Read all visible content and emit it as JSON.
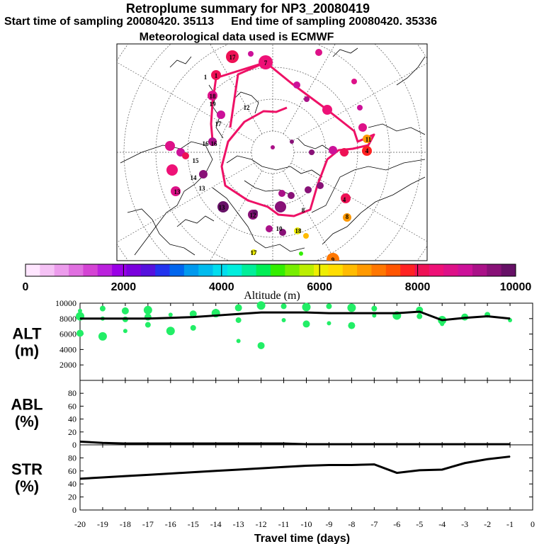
{
  "header": {
    "title": "Retroplume summary for NP3_20080419",
    "start_label": "Start time of sampling 20080420. 35113",
    "end_label": "End time of sampling 20080420. 35336",
    "met_label": "Meteorological data used is ECMWF"
  },
  "colors": {
    "track": "#ee1166",
    "green": "#22ee66",
    "line": "#000000"
  },
  "colorbar": {
    "ticks": [
      "0",
      "2000",
      "4000",
      "6000",
      "8000",
      "10000"
    ],
    "label": "Altitude (m)",
    "colors": [
      "#ffe6ff",
      "#f5c2f5",
      "#ec9cec",
      "#e070e0",
      "#d444d4",
      "#bb22dd",
      "#9a00e6",
      "#7a00dd",
      "#5511dd",
      "#2233ee",
      "#0066ee",
      "#0099ee",
      "#00bbee",
      "#00ddee",
      "#00eedd",
      "#00ee99",
      "#00ee55",
      "#33ee00",
      "#77ee00",
      "#bbee00",
      "#eeee00",
      "#ffdd00",
      "#ffbb00",
      "#ff9900",
      "#ff7700",
      "#ff5500",
      "#ff2222",
      "#ee1155",
      "#ee1177",
      "#dd1188",
      "#cc1199",
      "#aa1188",
      "#881177",
      "#661166"
    ]
  },
  "map": {
    "number_labels": [
      "17",
      "7",
      "1",
      "1",
      "18",
      "19",
      "12",
      "17",
      "16",
      "15",
      "14",
      "13",
      "13",
      "11",
      "4",
      "4",
      "8",
      "8",
      "12",
      "18",
      "17",
      "10",
      "9",
      "13",
      "16"
    ]
  },
  "chart_data": [
    {
      "type": "line",
      "panel": "ALT",
      "ylabel": "ALT\n(m)",
      "ylabel_lines": [
        "ALT",
        "(m)"
      ],
      "ylim": [
        0,
        10000
      ],
      "yticks": [
        "10000",
        "8000",
        "6000",
        "4000",
        "2000"
      ],
      "x": [
        -20,
        -19,
        -18,
        -17,
        -16,
        -15,
        -14,
        -13,
        -12,
        -11,
        -10,
        -9,
        -8,
        -7,
        -6,
        -5,
        -4,
        -3,
        -2,
        -1
      ],
      "values": [
        8000,
        8000,
        8000,
        8000,
        8100,
        8200,
        8400,
        8600,
        8800,
        8800,
        8800,
        8700,
        8700,
        8700,
        8700,
        8900,
        7800,
        8100,
        8300,
        8000
      ],
      "scatter_points": [
        {
          "x": -20,
          "y": 9000
        },
        {
          "x": -20,
          "y": 8300
        },
        {
          "x": -20,
          "y": 6100
        },
        {
          "x": -19,
          "y": 9300
        },
        {
          "x": -19,
          "y": 8000
        },
        {
          "x": -19,
          "y": 5700
        },
        {
          "x": -18,
          "y": 9000
        },
        {
          "x": -18,
          "y": 7900
        },
        {
          "x": -18,
          "y": 6400
        },
        {
          "x": -17,
          "y": 9100
        },
        {
          "x": -17,
          "y": 8200
        },
        {
          "x": -17,
          "y": 7200
        },
        {
          "x": -16,
          "y": 8500
        },
        {
          "x": -16,
          "y": 6400
        },
        {
          "x": -15,
          "y": 8600
        },
        {
          "x": -15,
          "y": 6800
        },
        {
          "x": -14,
          "y": 9000
        },
        {
          "x": -14,
          "y": 8700
        },
        {
          "x": -13,
          "y": 9400
        },
        {
          "x": -13,
          "y": 7800
        },
        {
          "x": -13,
          "y": 5100
        },
        {
          "x": -12,
          "y": 9700
        },
        {
          "x": -12,
          "y": 4500
        },
        {
          "x": -11,
          "y": 9600
        },
        {
          "x": -11,
          "y": 7800
        },
        {
          "x": -10,
          "y": 9500
        },
        {
          "x": -10,
          "y": 7300
        },
        {
          "x": -9,
          "y": 9600
        },
        {
          "x": -9,
          "y": 7400
        },
        {
          "x": -8,
          "y": 9400
        },
        {
          "x": -8,
          "y": 7100
        },
        {
          "x": -7,
          "y": 9300
        },
        {
          "x": -7,
          "y": 8400
        },
        {
          "x": -6,
          "y": 8400
        },
        {
          "x": -5,
          "y": 9100
        },
        {
          "x": -5,
          "y": 8300
        },
        {
          "x": -4,
          "y": 7300
        },
        {
          "x": -4,
          "y": 7800
        },
        {
          "x": -3,
          "y": 8200
        },
        {
          "x": -2,
          "y": 8500
        },
        {
          "x": -1,
          "y": 7800
        }
      ]
    },
    {
      "type": "line",
      "panel": "ABL",
      "ylabel_lines": [
        "ABL",
        "(%)"
      ],
      "ylim": [
        0,
        100
      ],
      "yticks": [
        "80",
        "60",
        "40",
        "20",
        "0"
      ],
      "x": [
        -20,
        -19,
        -18,
        -17,
        -16,
        -15,
        -14,
        -13,
        -12,
        -11,
        -10,
        -9,
        -8,
        -7,
        -6,
        -5,
        -4,
        -3,
        -2,
        -1
      ],
      "values": [
        5,
        3,
        2,
        2,
        2,
        2,
        2,
        2,
        2,
        2,
        1,
        1,
        1,
        1,
        1,
        1,
        1,
        1,
        1,
        1
      ]
    },
    {
      "type": "line",
      "panel": "STR",
      "ylabel_lines": [
        "STR",
        "(%)"
      ],
      "ylim": [
        0,
        100
      ],
      "yticks": [
        "80",
        "60",
        "40",
        "20",
        "0"
      ],
      "x": [
        -20,
        -19,
        -18,
        -17,
        -16,
        -15,
        -14,
        -13,
        -12,
        -11,
        -10,
        -9,
        -8,
        -7,
        -6,
        -5,
        -4,
        -3,
        -2,
        -1
      ],
      "values": [
        48,
        50,
        52,
        54,
        56,
        58,
        60,
        62,
        64,
        66,
        68,
        69,
        69,
        70,
        57,
        61,
        62,
        72,
        78,
        82
      ],
      "xticks": [
        "-20",
        "-19",
        "-18",
        "-17",
        "-16",
        "-15",
        "-14",
        "-13",
        "-12",
        "-11",
        "-10",
        "-9",
        "-8",
        "-7",
        "-6",
        "-5",
        "-4",
        "-3",
        "-2",
        "-1",
        "0"
      ],
      "xlim": [
        -20,
        0
      ],
      "xlabel": "Travel time (days)"
    }
  ]
}
